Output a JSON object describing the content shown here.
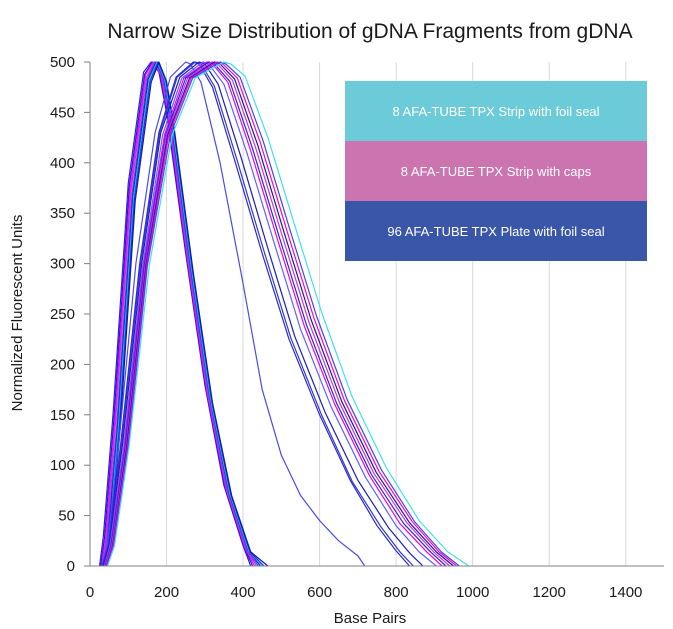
{
  "chart_data": {
    "type": "line",
    "title": "Narrow Size Distribution of gDNA Fragments from gDNA",
    "xlabel": "Base Pairs",
    "ylabel": "Normalized Fluorescent Units",
    "xlim": [
      0,
      1500
    ],
    "ylim": [
      0,
      500
    ],
    "x_ticks": [
      "0",
      "200",
      "400",
      "600",
      "800",
      "1000",
      "1200",
      "1400"
    ],
    "y_ticks": [
      "0",
      "50",
      "100",
      "150",
      "200",
      "250",
      "300",
      "350",
      "400",
      "450",
      "500"
    ],
    "grid": "vertical",
    "legend": [
      {
        "label": "8 AFA-TUBE TPX Strip with foil seal",
        "color": "#6ccbd8"
      },
      {
        "label": "8 AFA-TUBE TPX Strip with caps",
        "color": "#cc74b0"
      },
      {
        "label": "96 AFA-TUBE TPX Plate with foil seal",
        "color": "#3a56a8"
      }
    ],
    "series": [
      {
        "color": "#2222dd",
        "x": [
          25,
          35,
          60,
          100,
          140,
          160,
          180,
          200,
          250,
          300,
          350,
          400,
          420
        ],
        "y": [
          0,
          30,
          150,
          380,
          490,
          500,
          490,
          450,
          310,
          180,
          80,
          20,
          0
        ]
      },
      {
        "color": "#1a1acc",
        "x": [
          28,
          38,
          63,
          103,
          143,
          163,
          183,
          203,
          253,
          303,
          353,
          403,
          425
        ],
        "y": [
          0,
          28,
          148,
          378,
          488,
          500,
          488,
          448,
          305,
          176,
          78,
          19,
          0
        ]
      },
      {
        "color": "#ff00ff",
        "x": [
          30,
          40,
          65,
          105,
          145,
          165,
          185,
          205,
          255,
          305,
          355,
          405,
          430
        ],
        "y": [
          0,
          25,
          145,
          375,
          487,
          500,
          487,
          446,
          303,
          174,
          77,
          18,
          0
        ]
      },
      {
        "color": "#dd22ee",
        "x": [
          32,
          42,
          67,
          107,
          147,
          168,
          188,
          208,
          258,
          308,
          358,
          408,
          435
        ],
        "y": [
          0,
          24,
          143,
          372,
          485,
          500,
          486,
          444,
          301,
          172,
          75,
          17,
          0
        ]
      },
      {
        "color": "#5050ee",
        "x": [
          34,
          44,
          70,
          110,
          150,
          170,
          190,
          210,
          260,
          310,
          360,
          410,
          440
        ],
        "y": [
          0,
          22,
          140,
          370,
          484,
          500,
          485,
          442,
          299,
          170,
          74,
          16,
          0
        ]
      },
      {
        "color": "#2020bb",
        "x": [
          36,
          46,
          72,
          112,
          152,
          173,
          193,
          213,
          263,
          313,
          363,
          413,
          445
        ],
        "y": [
          0,
          21,
          138,
          368,
          483,
          500,
          484,
          440,
          297,
          168,
          73,
          16,
          0
        ]
      },
      {
        "color": "#00c8e6",
        "x": [
          38,
          48,
          74,
          114,
          155,
          175,
          195,
          215,
          265,
          315,
          365,
          415,
          450
        ],
        "y": [
          0,
          20,
          136,
          366,
          482,
          500,
          483,
          438,
          295,
          166,
          72,
          15,
          0
        ]
      },
      {
        "color": "#3030dd",
        "x": [
          40,
          50,
          76,
          116,
          157,
          178,
          198,
          218,
          268,
          318,
          368,
          418,
          455
        ],
        "y": [
          0,
          19,
          134,
          364,
          481,
          500,
          482,
          436,
          293,
          164,
          71,
          14,
          0
        ]
      },
      {
        "color": "#1515aa",
        "x": [
          42,
          52,
          78,
          118,
          160,
          180,
          200,
          220,
          270,
          320,
          370,
          420,
          465
        ],
        "y": [
          0,
          18,
          132,
          362,
          480,
          500,
          481,
          434,
          291,
          162,
          70,
          14,
          0
        ]
      },
      {
        "color": "#4a4aee",
        "x": [
          30,
          45,
          75,
          120,
          170,
          210,
          250,
          262,
          290,
          340,
          400,
          450,
          500,
          550,
          600,
          650,
          700,
          718
        ],
        "y": [
          0,
          20,
          120,
          300,
          430,
          485,
          500,
          498,
          480,
          400,
          280,
          175,
          110,
          70,
          45,
          25,
          10,
          0
        ]
      },
      {
        "color": "#2a2acc",
        "x": [
          32,
          48,
          80,
          130,
          180,
          225,
          270,
          285,
          320,
          380,
          450,
          520,
          600,
          680,
          750,
          800,
          835
        ],
        "y": [
          0,
          20,
          120,
          300,
          430,
          485,
          500,
          498,
          475,
          400,
          310,
          225,
          150,
          85,
          40,
          15,
          0
        ]
      },
      {
        "color": "#3434dd",
        "x": [
          33,
          50,
          82,
          132,
          182,
          228,
          275,
          290,
          325,
          385,
          455,
          525,
          605,
          685,
          760,
          810,
          845
        ],
        "y": [
          0,
          20,
          120,
          300,
          430,
          485,
          500,
          498,
          476,
          402,
          312,
          226,
          150,
          84,
          39,
          14,
          0
        ]
      },
      {
        "color": "#1c1cbb",
        "x": [
          35,
          50,
          85,
          135,
          185,
          235,
          285,
          300,
          335,
          395,
          465,
          535,
          615,
          700,
          780,
          835,
          870
        ],
        "y": [
          0,
          20,
          120,
          300,
          430,
          485,
          500,
          498,
          478,
          405,
          315,
          228,
          152,
          85,
          38,
          13,
          0
        ]
      },
      {
        "color": "#6060ff",
        "x": [
          37,
          52,
          88,
          138,
          190,
          240,
          295,
          310,
          350,
          410,
          480,
          550,
          630,
          720,
          800,
          860,
          905
        ],
        "y": [
          0,
          20,
          118,
          298,
          428,
          484,
          500,
          498,
          478,
          410,
          322,
          235,
          158,
          88,
          40,
          14,
          0
        ]
      },
      {
        "color": "#ee00ee",
        "x": [
          38,
          54,
          90,
          140,
          195,
          245,
          305,
          320,
          360,
          420,
          490,
          560,
          640,
          730,
          810,
          880,
          920
        ],
        "y": [
          0,
          20,
          118,
          298,
          428,
          484,
          500,
          498,
          480,
          412,
          324,
          238,
          160,
          90,
          42,
          14,
          0
        ]
      },
      {
        "color": "#2828dd",
        "x": [
          40,
          55,
          92,
          142,
          198,
          250,
          310,
          325,
          365,
          425,
          495,
          565,
          645,
          735,
          820,
          890,
          930
        ],
        "y": [
          0,
          20,
          118,
          298,
          428,
          484,
          500,
          498,
          481,
          414,
          326,
          240,
          161,
          91,
          42,
          14,
          0
        ]
      },
      {
        "color": "#cc33dd",
        "x": [
          41,
          57,
          94,
          144,
          200,
          255,
          318,
          333,
          372,
          432,
          502,
          572,
          652,
          742,
          828,
          898,
          940
        ],
        "y": [
          0,
          20,
          118,
          298,
          428,
          484,
          500,
          498,
          482,
          416,
          328,
          242,
          162,
          92,
          43,
          14,
          0
        ]
      },
      {
        "color": "#1818aa",
        "x": [
          43,
          59,
          96,
          146,
          203,
          260,
          325,
          340,
          378,
          438,
          508,
          578,
          658,
          748,
          835,
          905,
          950
        ],
        "y": [
          0,
          20,
          118,
          298,
          428,
          484,
          500,
          498,
          483,
          418,
          330,
          244,
          163,
          93,
          43,
          14,
          0
        ]
      },
      {
        "color": "#ff00cc",
        "x": [
          44,
          60,
          98,
          148,
          206,
          264,
          332,
          347,
          385,
          445,
          515,
          585,
          665,
          755,
          842,
          912,
          958
        ],
        "y": [
          0,
          20,
          118,
          298,
          428,
          484,
          500,
          498,
          484,
          420,
          332,
          246,
          164,
          94,
          44,
          14,
          0
        ]
      },
      {
        "color": "#4444ee",
        "x": [
          45,
          62,
          100,
          150,
          210,
          268,
          340,
          355,
          392,
          452,
          522,
          592,
          672,
          762,
          848,
          918,
          965
        ],
        "y": [
          0,
          20,
          118,
          298,
          428,
          484,
          500,
          498,
          485,
          422,
          334,
          248,
          165,
          95,
          44,
          14,
          0
        ]
      },
      {
        "color": "#40e0f0",
        "x": [
          46,
          64,
          102,
          155,
          215,
          275,
          350,
          368,
          405,
          465,
          535,
          605,
          685,
          775,
          860,
          935,
          990
        ],
        "y": [
          0,
          20,
          118,
          298,
          428,
          484,
          500,
          498,
          486,
          425,
          338,
          252,
          168,
          97,
          45,
          14,
          0
        ]
      }
    ]
  }
}
